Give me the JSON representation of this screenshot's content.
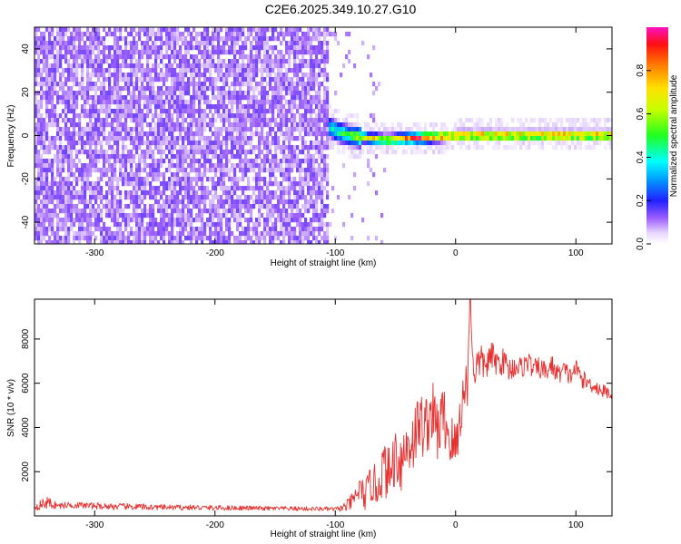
{
  "figure_title": "C2E6.2025.349.10.27.G10",
  "colors": {
    "snr_line": "#e83030",
    "spec_low": "#6a1fe0",
    "spec_mid": "#19ff19",
    "spec_high": "#ff1010",
    "axis": "#000000"
  },
  "chart_data": [
    {
      "type": "heatmap",
      "title": "",
      "xlabel": "Height of straight line (km)",
      "ylabel": "Frequency (Hz)",
      "xlim": [
        -350,
        130
      ],
      "ylim": [
        -50,
        50
      ],
      "xticks": [
        -300,
        -200,
        -100,
        0,
        100
      ],
      "yticks": [
        -40,
        -20,
        0,
        20,
        40
      ],
      "colorbar": {
        "label": "Normalized spectral amplitude",
        "range": [
          0,
          1
        ],
        "ticks": [
          0.0,
          0.2,
          0.4,
          0.6,
          0.8
        ],
        "tick_labels": [
          "0.0",
          "0.2",
          "0.4",
          "0.6",
          "0.8"
        ]
      },
      "regions": [
        {
          "x_range": [
            -350,
            -107
          ],
          "description": "broadband noise, amplitude ~0.05-0.15 across all frequencies"
        },
        {
          "x_range": [
            -107,
            130
          ],
          "description": "narrow signal band near 0 Hz, amplitude rising to ~0.9-1.0"
        }
      ],
      "signal_band_center_hz": [
        {
          "x": -107,
          "f": 5
        },
        {
          "x": -100,
          "f": 3
        },
        {
          "x": -90,
          "f": 1
        },
        {
          "x": -60,
          "f": -1
        },
        {
          "x": -30,
          "f": 0
        },
        {
          "x": 0,
          "f": 1
        },
        {
          "x": 50,
          "f": 1
        },
        {
          "x": 100,
          "f": 1
        },
        {
          "x": 130,
          "f": 1
        }
      ]
    },
    {
      "type": "line",
      "title": "",
      "xlabel": "Height of straight line (km)",
      "ylabel": "SNR (10 * v/v)",
      "xlim": [
        -350,
        130
      ],
      "ylim": [
        0,
        9800
      ],
      "xticks": [
        -300,
        -200,
        -100,
        0,
        100
      ],
      "yticks": [
        2000,
        4000,
        6000,
        8000
      ],
      "series": [
        {
          "name": "SNR",
          "color": "#e83030",
          "x": [
            -350,
            -340,
            -330,
            -320,
            -300,
            -280,
            -260,
            -240,
            -220,
            -200,
            -180,
            -160,
            -140,
            -120,
            -110,
            -100,
            -95,
            -90,
            -85,
            -80,
            -75,
            -70,
            -65,
            -60,
            -55,
            -50,
            -45,
            -40,
            -35,
            -30,
            -25,
            -20,
            -15,
            -10,
            -5,
            0,
            5,
            10,
            12,
            15,
            20,
            25,
            30,
            35,
            40,
            45,
            50,
            55,
            60,
            65,
            70,
            75,
            80,
            85,
            90,
            95,
            100,
            105,
            110,
            115,
            120,
            125,
            130
          ],
          "values": [
            400,
            600,
            450,
            500,
            450,
            420,
            400,
            380,
            380,
            360,
            360,
            340,
            330,
            320,
            320,
            300,
            350,
            450,
            700,
            1200,
            900,
            1500,
            1300,
            2200,
            1800,
            2800,
            2500,
            3200,
            3500,
            4200,
            4000,
            4800,
            3800,
            4600,
            3500,
            3000,
            5000,
            6200,
            9800,
            6500,
            7000,
            6800,
            7200,
            6900,
            7000,
            6600,
            6800,
            6700,
            7000,
            6600,
            6700,
            6500,
            6800,
            6400,
            6600,
            6300,
            6700,
            6200,
            6000,
            5900,
            5700,
            5600,
            5500
          ],
          "noise_amplitude": [
            150,
            300,
            150,
            150,
            150,
            150,
            150,
            120,
            120,
            120,
            110,
            100,
            100,
            100,
            100,
            100,
            150,
            300,
            400,
            600,
            700,
            900,
            1000,
            1200,
            1300,
            1400,
            1500,
            1500,
            1500,
            1500,
            1500,
            1500,
            1500,
            1400,
            1400,
            1300,
            1200,
            1200,
            0,
            900,
            800,
            700,
            700,
            600,
            600,
            600,
            500,
            500,
            500,
            500,
            500,
            500,
            500,
            450,
            450,
            450,
            400,
            400,
            400,
            350,
            350,
            300,
            300
          ]
        }
      ]
    }
  ]
}
